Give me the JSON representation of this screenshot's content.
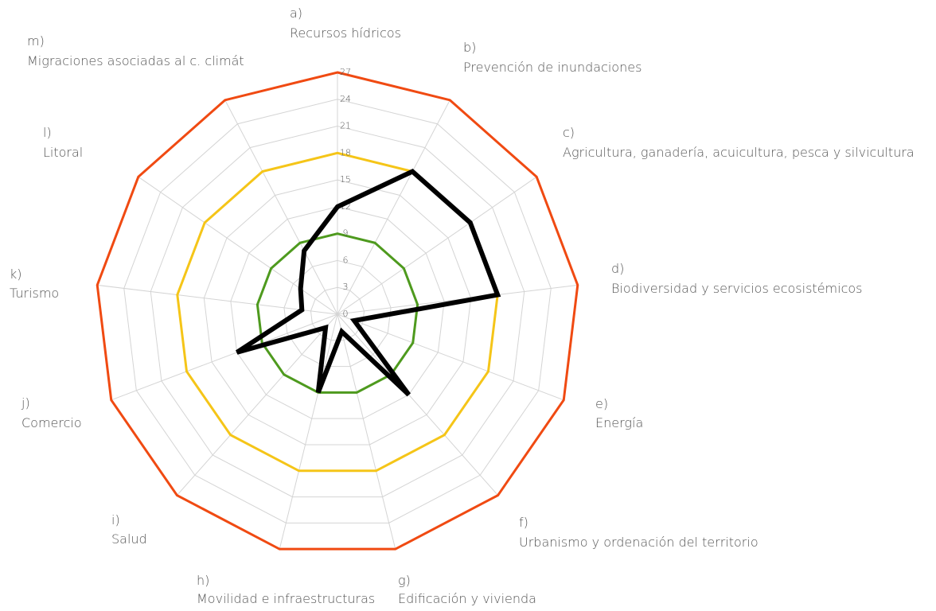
{
  "chart_data": {
    "type": "radar",
    "category_letters": [
      "a)",
      "b)",
      "c)",
      "d)",
      "e)",
      "f)",
      "g)",
      "h)",
      "i)",
      "j)",
      "k)",
      "l)",
      "m)"
    ],
    "categories": [
      "Recursos hídricos",
      "Prevención de inundaciones",
      "Agricultura, ganadería, acuicultura, pesca y silvicultura",
      "Biodiversidad y servicios ecosistémicos",
      "Energía",
      "Urbanismo y ordenación del territorio",
      "Edificación y vivienda",
      "Movilidad e infraestructuras",
      "Salud",
      "Comercio",
      "Turismo",
      "Litoral",
      "Migraciones asociadas al c. climát"
    ],
    "series": [
      {
        "color": "#000000",
        "values": [
          12,
          18,
          18,
          18,
          2,
          12,
          2,
          9,
          2,
          12,
          4,
          5,
          8
        ]
      }
    ],
    "reference_levels": [
      {
        "value": 9,
        "color": "#4e9a1e"
      },
      {
        "value": 18,
        "color": "#f5c518"
      },
      {
        "value": 27,
        "color": "#f04a12"
      }
    ],
    "ylim": [
      0,
      27
    ],
    "yticks": [
      0,
      3,
      6,
      9,
      12,
      15,
      18,
      21,
      24,
      27
    ],
    "grid": true
  }
}
